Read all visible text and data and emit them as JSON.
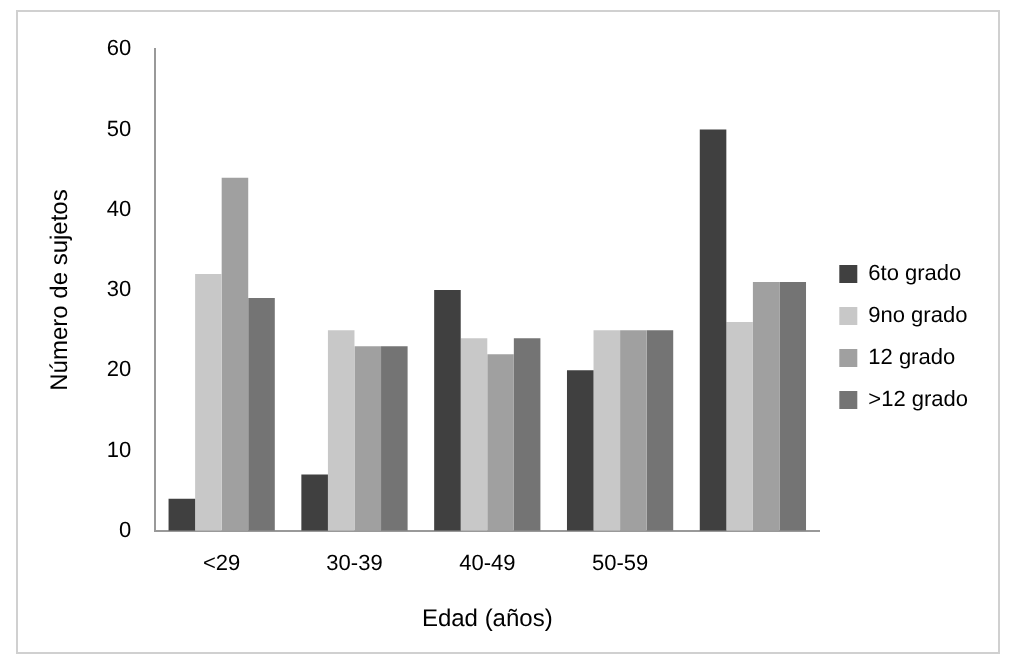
{
  "chart_data": {
    "type": "bar",
    "xlabel": "Edad (años)",
    "ylabel": "Número de sujetos",
    "categories": [
      "<29",
      "30-39",
      "40-49",
      "50-59",
      null
    ],
    "series": [
      {
        "name": "6to grado",
        "color": "#404040",
        "values": [
          4,
          7,
          30,
          20,
          50
        ]
      },
      {
        "name": "9no grado",
        "color": "#c8c8c8",
        "values": [
          32,
          25,
          24,
          25,
          26
        ]
      },
      {
        "name": "12 grado",
        "color": "#a0a0a0",
        "values": [
          44,
          23,
          22,
          25,
          31
        ]
      },
      {
        "name": ">12 grado",
        "color": "#747474",
        "values": [
          29,
          23,
          24,
          25,
          31
        ]
      }
    ],
    "ylim": [
      0,
      60
    ],
    "yticks": [
      0,
      10,
      20,
      30,
      40,
      50,
      60
    ],
    "grid": false,
    "legend": "right"
  }
}
